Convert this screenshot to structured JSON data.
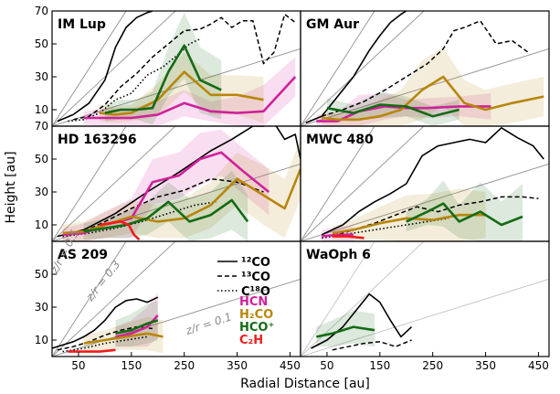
{
  "chart_data": {
    "type": "line",
    "xlabel": "Radial Distance [au]",
    "ylabel": "Height [au]",
    "ratio_lines": [
      {
        "slope": 0.5,
        "label": "z/r = 0.5"
      },
      {
        "slope": 0.3,
        "label": "z/r = 0.3"
      },
      {
        "slope": 0.1,
        "label": "z/r = 0.1"
      }
    ],
    "colors": {
      "12CO": "#000000",
      "13CO": "#000000",
      "C18O": "#000000",
      "HCN": "#d0219b",
      "H2CO": "#b8860b",
      "HCO+": "#146b14",
      "C2H": "#ef1c1c"
    },
    "legend": [
      {
        "key": "12CO",
        "label": "¹²CO",
        "style": "solid"
      },
      {
        "key": "13CO",
        "label": "¹³CO",
        "style": "dashed"
      },
      {
        "key": "C18O",
        "label": "C¹⁸O",
        "style": "dotted"
      },
      {
        "key": "HCN",
        "label": "HCN"
      },
      {
        "key": "H2CO",
        "label": "H₂CO"
      },
      {
        "key": "HCO+",
        "label": "HCO⁺"
      },
      {
        "key": "C2H",
        "label": "C₂H"
      }
    ],
    "panels": [
      {
        "name": "IM Lup",
        "xlim": [
          0,
          470
        ],
        "ylim": [
          0,
          70
        ],
        "xticks": [],
        "yticks": [
          10,
          30,
          50,
          70
        ],
        "series": [
          {
            "key": "12CO",
            "x": [
              10,
              40,
              70,
              100,
              120,
              140,
              160,
              180,
              190
            ],
            "y": [
              3,
              7,
              14,
              28,
              48,
              60,
              66,
              69,
              70
            ]
          },
          {
            "key": "13CO",
            "x": [
              40,
              70,
              100,
              130,
              160,
              190,
              220,
              250,
              280,
              300,
              320,
              340,
              360,
              380,
              400,
              420,
              440,
              460
            ],
            "y": [
              4,
              6,
              13,
              24,
              32,
              42,
              50,
              58,
              59,
              62,
              66,
              60,
              64,
              64,
              38,
              45,
              68,
              63
            ]
          },
          {
            "key": "C18O",
            "x": [
              30,
              60,
              90,
              120,
              150,
              180,
              210,
              240,
              260,
              280
            ],
            "y": [
              3,
              4,
              8,
              16,
              20,
              31,
              36,
              44,
              50,
              53
            ]
          },
          {
            "key": "HCN",
            "x": [
              60,
              100,
              150,
              200,
              250,
              300,
              350,
              400,
              460
            ],
            "y": [
              5,
              5,
              5,
              7,
              14,
              9,
              8,
              9,
              30
            ],
            "band": [
              4,
              6,
              6,
              8,
              8,
              6,
              10,
              16,
              12
            ]
          },
          {
            "key": "H2CO",
            "x": [
              90,
              120,
              150,
              200,
              250,
              300,
              350,
              400
            ],
            "y": [
              8,
              7,
              8,
              16,
              33,
              19,
              19,
              16
            ],
            "band": [
              5,
              5,
              5,
              10,
              12,
              12,
              12,
              14
            ]
          },
          {
            "key": "HCO+",
            "x": [
              100,
              130,
              160,
              190,
              220,
              250,
              280,
              320
            ],
            "y": [
              8,
              10,
              10,
              11,
              33,
              49,
              28,
              22
            ],
            "band": [
              5,
              6,
              6,
              10,
              15,
              20,
              20,
              18
            ]
          }
        ]
      },
      {
        "name": "GM Aur",
        "xlim": [
          0,
          470
        ],
        "ylim": [
          0,
          70
        ],
        "xticks": [],
        "yticks": [],
        "series": [
          {
            "key": "12CO",
            "x": [
              10,
              40,
              70,
              100,
              130,
              150,
              170,
              190,
              200
            ],
            "y": [
              2,
              6,
              18,
              30,
              46,
              55,
              63,
              68,
              70
            ]
          },
          {
            "key": "13CO",
            "x": [
              40,
              80,
              120,
              160,
              200,
              240,
              270,
              290,
              310,
              340,
              370,
              400,
              430
            ],
            "y": [
              6,
              10,
              15,
              22,
              30,
              38,
              47,
              58,
              60,
              64,
              50,
              52,
              45
            ]
          },
          {
            "key": "HCN",
            "x": [
              30,
              70,
              110,
              160,
              200,
              240,
              300,
              360
            ],
            "y": [
              3,
              3,
              9,
              12,
              11,
              11,
              12,
              12
            ],
            "band": [
              4,
              5,
              10,
              8,
              5,
              6,
              6,
              8
            ]
          },
          {
            "key": "H2CO",
            "x": [
              40,
              70,
              110,
              150,
              190,
              230,
              270,
              310,
              350,
              400,
              460
            ],
            "y": [
              5,
              4,
              4,
              6,
              10,
              22,
              30,
              14,
              10,
              14,
              18
            ],
            "band": [
              4,
              4,
              6,
              10,
              12,
              18,
              18,
              14,
              12,
              12,
              12
            ]
          },
          {
            "key": "HCO+",
            "x": [
              50,
              100,
              150,
              200,
              250,
              300
            ],
            "y": [
              11,
              8,
              13,
              12,
              6,
              10
            ],
            "band": [
              6,
              5,
              8,
              6,
              6,
              6
            ]
          }
        ]
      },
      {
        "name": "HD 163296",
        "xlim": [
          0,
          470
        ],
        "ylim": [
          0,
          70
        ],
        "xticks": [],
        "yticks": [
          10,
          30,
          50,
          70
        ],
        "series": [
          {
            "key": "12CO",
            "x": [
              10,
              60,
              120,
              180,
              240,
              300,
              340,
              380,
              400,
              420,
              440,
              460,
              470
            ],
            "y": [
              3,
              7,
              17,
              30,
              42,
              55,
              62,
              70,
              70,
              72,
              62,
              65,
              50
            ]
          },
          {
            "key": "13CO",
            "x": [
              20,
              60,
              100,
              150,
              200,
              250,
              300,
              350,
              400
            ],
            "y": [
              4,
              6,
              12,
              20,
              27,
              31,
              38,
              36,
              30
            ]
          },
          {
            "key": "C18O",
            "x": [
              20,
              70,
              120,
              170,
              220,
              270,
              310
            ],
            "y": [
              3,
              5,
              8,
              12,
              17,
              22,
              24
            ]
          },
          {
            "key": "HCN",
            "x": [
              20,
              60,
              100,
              150,
              190,
              240,
              280,
              320,
              360,
              410
            ],
            "y": [
              4,
              5,
              10,
              14,
              36,
              40,
              50,
              54,
              43,
              30
            ],
            "band": [
              4,
              6,
              8,
              12,
              14,
              14,
              16,
              14,
              14,
              14
            ]
          },
          {
            "key": "H2CO",
            "x": [
              20,
              60,
              100,
              150,
              200,
              250,
              300,
              350,
              400,
              440,
              470
            ],
            "y": [
              5,
              6,
              10,
              15,
              12,
              14,
              22,
              38,
              28,
              20,
              44
            ],
            "band": [
              5,
              6,
              8,
              10,
              10,
              12,
              14,
              16,
              18,
              18,
              18
            ]
          },
          {
            "key": "HCO+",
            "x": [
              60,
              100,
              140,
              180,
              220,
              260,
              300,
              340,
              370
            ],
            "y": [
              6,
              8,
              10,
              14,
              24,
              12,
              16,
              25,
              12
            ],
            "band": [
              5,
              6,
              8,
              10,
              12,
              14,
              14,
              18,
              16
            ]
          },
          {
            "key": "C2H",
            "x": [
              90,
              110,
              130,
              145,
              155,
              165
            ],
            "y": [
              10,
              11,
              12,
              10,
              4,
              1
            ]
          }
        ]
      },
      {
        "name": "MWC 480",
        "xlim": [
          0,
          470
        ],
        "ylim": [
          0,
          70
        ],
        "xticks": [],
        "yticks": [],
        "series": [
          {
            "key": "12CO",
            "x": [
              40,
              80,
              110,
              140,
              170,
              200,
              230,
              260,
              290,
              320,
              350,
              380,
              410,
              440,
              460
            ],
            "y": [
              4,
              10,
              18,
              24,
              29,
              35,
              52,
              58,
              60,
              62,
              60,
              69,
              63,
              58,
              50
            ]
          },
          {
            "key": "13CO",
            "x": [
              60,
              100,
              140,
              180,
              220,
              260,
              300,
              340,
              380,
              420,
              450
            ],
            "y": [
              3,
              7,
              11,
              16,
              21,
              18,
              22,
              24,
              27,
              27,
              26
            ]
          },
          {
            "key": "C18O",
            "x": [
              40,
              80,
              120,
              160,
              200,
              240,
              280
            ],
            "y": [
              2,
              4,
              6,
              8,
              10,
              12,
              14
            ]
          },
          {
            "key": "HCN",
            "x": [
              40,
              70,
              100
            ],
            "y": [
              3,
              4,
              4
            ],
            "band": [
              4,
              5,
              5
            ]
          },
          {
            "key": "H2CO",
            "x": [
              60,
              100,
              150,
              200,
              250,
              300,
              350
            ],
            "y": [
              5,
              7,
              11,
              14,
              13,
              16,
              16
            ],
            "band": [
              4,
              6,
              10,
              14,
              16,
              16,
              14
            ]
          },
          {
            "key": "HCO+",
            "x": [
              200,
              240,
              270,
              300,
              340,
              380,
              420
            ],
            "y": [
              12,
              18,
              23,
              12,
              18,
              10,
              15
            ],
            "band": [
              6,
              8,
              14,
              10,
              18,
              14,
              20
            ]
          },
          {
            "key": "C2H",
            "x": [
              60,
              90,
              120
            ],
            "y": [
              3,
              3,
              2
            ]
          }
        ]
      },
      {
        "name": "AS 209",
        "xlim": [
          0,
          470
        ],
        "ylim": [
          0,
          70
        ],
        "xticks": [
          50,
          150,
          250,
          350,
          450
        ],
        "yticks": [
          10,
          30,
          50
        ],
        "series": [
          {
            "key": "12CO",
            "x": [
              0,
              20,
              40,
              60,
              80,
              100,
              120,
              140,
              160,
              180,
              200
            ],
            "y": [
              5,
              7,
              9,
              12,
              16,
              22,
              30,
              34,
              35,
              33,
              36
            ]
          },
          {
            "key": "13CO",
            "x": [
              10,
              40,
              70,
              100,
              130,
              160,
              190
            ],
            "y": [
              4,
              6,
              9,
              13,
              16,
              18,
              17
            ]
          },
          {
            "key": "C18O",
            "x": [
              20,
              60,
              100,
              140,
              180
            ],
            "y": [
              3,
              5,
              8,
              10,
              12
            ]
          },
          {
            "key": "HCN",
            "x": [
              120,
              150,
              180,
              200
            ],
            "y": [
              12,
              14,
              18,
              25
            ],
            "band": [
              6,
              8,
              12,
              14
            ]
          },
          {
            "key": "H2CO",
            "x": [
              60,
              100,
              140,
              180,
              210
            ],
            "y": [
              8,
              10,
              12,
              14,
              12
            ],
            "band": [
              5,
              6,
              8,
              10,
              10
            ]
          },
          {
            "key": "HCO+",
            "x": [
              120,
              150,
              180,
              200
            ],
            "y": [
              14,
              16,
              20,
              22
            ],
            "band": [
              8,
              10,
              12,
              12
            ]
          },
          {
            "key": "C2H",
            "x": [
              30,
              60,
              90,
              120
            ],
            "y": [
              3,
              3,
              3,
              4
            ]
          }
        ]
      },
      {
        "name": "WaOph 6",
        "xlim": [
          0,
          470
        ],
        "ylim": [
          0,
          70
        ],
        "xticks": [
          50,
          150,
          250,
          350,
          450
        ],
        "yticks": [],
        "series": [
          {
            "key": "12CO",
            "x": [
              20,
              50,
              80,
              110,
              130,
              150,
              170,
              190,
              210
            ],
            "y": [
              5,
              10,
              18,
              30,
              38,
              33,
              22,
              12,
              18
            ]
          },
          {
            "key": "13CO",
            "x": [
              60,
              90,
              120,
              150,
              180,
              210
            ],
            "y": [
              4,
              6,
              8,
              9,
              6,
              10
            ]
          },
          {
            "key": "HCO+",
            "x": [
              30,
              60,
              100,
              140
            ],
            "y": [
              12,
              14,
              18,
              16
            ],
            "band": [
              6,
              8,
              10,
              10
            ]
          }
        ]
      }
    ]
  }
}
